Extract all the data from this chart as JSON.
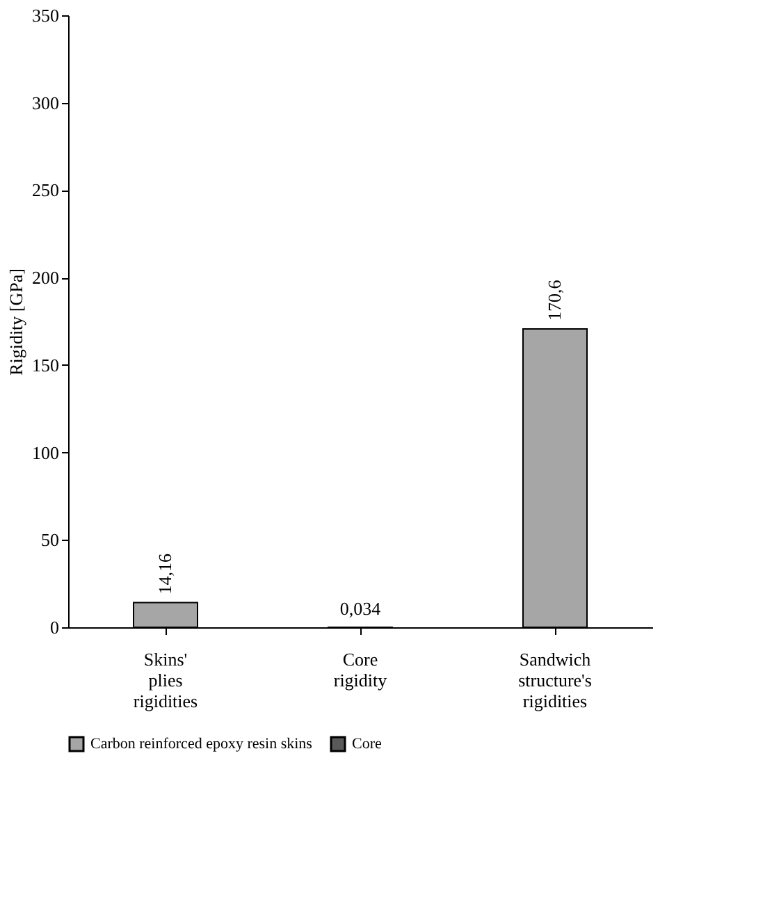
{
  "chart_data": {
    "type": "bar",
    "ylabel": "Rigidity [GPa]",
    "categories": [
      "Skins' plies rigidities",
      "Core rigidity",
      "Sandwich structure's rigidities"
    ],
    "series": [
      {
        "name": "Carbon reinforced epoxy resin skins",
        "color": "#a6a6a6",
        "values": [
          14.16,
          null,
          170.6
        ],
        "value_labels": [
          "14,16",
          null,
          "170,6"
        ]
      },
      {
        "name": "Core",
        "color": "#595959",
        "values": [
          null,
          0.034,
          null
        ],
        "value_labels": [
          null,
          "0,034",
          null
        ]
      }
    ],
    "ylim": [
      0,
      350
    ],
    "yticks": [
      0,
      50,
      100,
      150,
      200,
      250,
      300,
      350
    ],
    "grid": false,
    "legend": "bottom"
  }
}
